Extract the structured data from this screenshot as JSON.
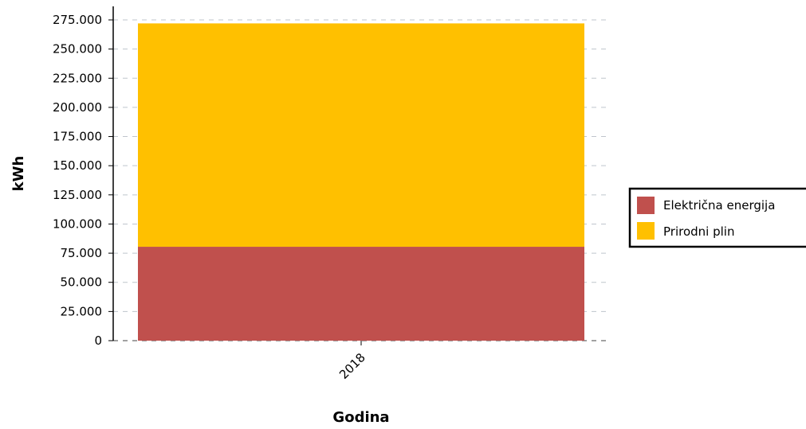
{
  "chart_data": {
    "type": "bar",
    "stacked": true,
    "categories": [
      "2018"
    ],
    "series": [
      {
        "name": "Električna energija",
        "values": [
          80500
        ],
        "color": "#C0504D"
      },
      {
        "name": "Prirodni plin",
        "values": [
          191500
        ],
        "color": "#FFC000"
      }
    ],
    "xlabel": "Godina",
    "ylabel": "kWh",
    "ylim": [
      0,
      275000
    ],
    "yticks": [
      0,
      25000,
      50000,
      75000,
      100000,
      125000,
      150000,
      175000,
      200000,
      225000,
      250000,
      275000
    ],
    "ytick_labels": [
      "0",
      "25.000",
      "50.000",
      "75.000",
      "100.000",
      "125.000",
      "150.000",
      "175.000",
      "200.000",
      "225.000",
      "250.000",
      "275.000"
    ],
    "grid": true,
    "grid_style": "dashed",
    "legend_position": "right"
  }
}
